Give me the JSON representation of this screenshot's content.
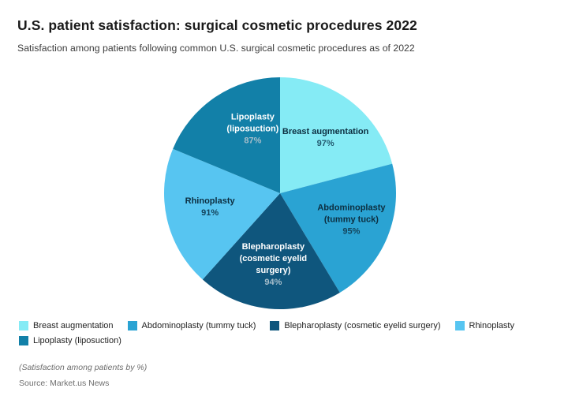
{
  "header": {
    "title": "U.S. patient satisfaction: surgical cosmetic procedures 2022",
    "subtitle": "Satisfaction among patients following common U.S. surgical cosmetic procedures as of 2022"
  },
  "chart_data": {
    "type": "pie",
    "title": "U.S. patient satisfaction: surgical cosmetic procedures 2022",
    "unit": "%",
    "start_angle_deg": 0,
    "direction": "clockwise",
    "legend_position": "bottom",
    "slices": [
      {
        "label": "Breast augmentation",
        "value": 97,
        "pct_text": "97%",
        "color": "#85EBF5",
        "label_lines": [
          "Breast augmentation"
        ],
        "text_color": "#0C2E40",
        "pct_color": "#235A70",
        "label_offset": [
          2,
          2
        ]
      },
      {
        "label": "Abdominoplasty (tummy tuck)",
        "value": 95,
        "pct_text": "95%",
        "color": "#2AA3D3",
        "label_lines": [
          "Abdominoplasty",
          "(tummy tuck)"
        ],
        "text_color": "#0C2E40",
        "pct_color": "#14445C",
        "label_offset": [
          6,
          0
        ]
      },
      {
        "label": "Blepharoplasty (cosmetic eyelid surgery)",
        "value": 94,
        "pct_text": "94%",
        "color": "#0F567D",
        "label_lines": [
          "Blepharoplasty",
          "(cosmetic eyelid",
          "surgery)"
        ],
        "text_color": "#FFFFFF",
        "pct_color": "#A7BECB",
        "label_offset": [
          0,
          0
        ]
      },
      {
        "label": "Rhinoplasty",
        "value": 91,
        "pct_text": "91%",
        "color": "#57C5F1",
        "label_lines": [
          "Rhinoplasty"
        ],
        "text_color": "#0C2E40",
        "pct_color": "#14445C",
        "label_offset": [
          0,
          -2
        ]
      },
      {
        "label": "Lipoplasty (liposuction)",
        "value": 87,
        "pct_text": "87%",
        "color": "#1280A8",
        "label_lines": [
          "Lipoplasty",
          "(liposuction)"
        ],
        "text_color": "#FFFFFF",
        "pct_color": "#A7BECB",
        "label_offset": [
          16,
          -5
        ]
      }
    ]
  },
  "legend": {
    "items": [
      {
        "label": "Breast augmentation",
        "color": "#85EBF5"
      },
      {
        "label": "Abdominoplasty (tummy tuck)",
        "color": "#2AA3D3"
      },
      {
        "label": "Blepharoplasty (cosmetic eyelid surgery)",
        "color": "#0F567D"
      },
      {
        "label": "Rhinoplasty",
        "color": "#57C5F1"
      },
      {
        "label": "Lipoplasty (liposuction)",
        "color": "#1280A8"
      }
    ]
  },
  "footer": {
    "note": "(Satisfaction among patients by %)",
    "source": "Source: Market.us News"
  }
}
